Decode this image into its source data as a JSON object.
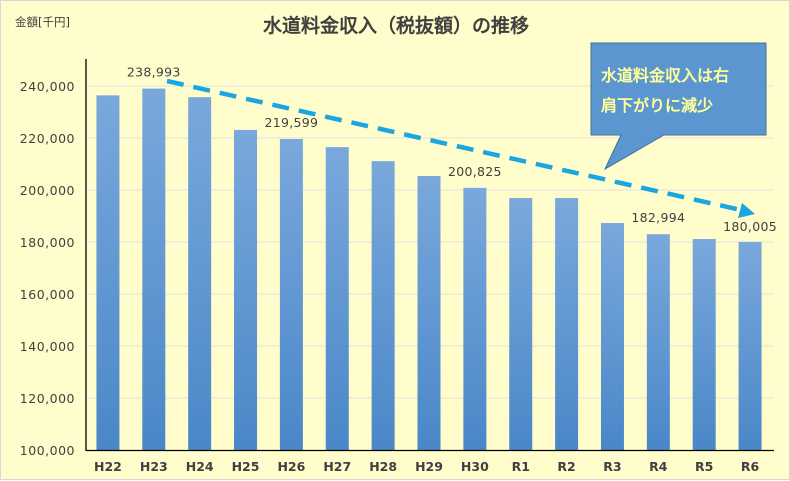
{
  "chart_data": {
    "type": "bar",
    "title": "水道料金収入（税抜額）の推移",
    "ylabel": "金額[千円]",
    "xlabel": "",
    "categories": [
      "H22",
      "H23",
      "H24",
      "H25",
      "H26",
      "H27",
      "H28",
      "H29",
      "H30",
      "R1",
      "R2",
      "R3",
      "R4",
      "R5",
      "R6"
    ],
    "values": [
      236400,
      238993,
      235700,
      223100,
      219599,
      216500,
      211100,
      205400,
      200825,
      196900,
      196900,
      187300,
      182994,
      181150,
      180005
    ],
    "data_labels": {
      "H23": "238,993",
      "H26": "219,599",
      "H30": "200,825",
      "R4": "182,994",
      "R6": "180,005"
    },
    "ylim": [
      100000,
      250000
    ],
    "yticks": [
      100000,
      120000,
      140000,
      160000,
      180000,
      200000,
      220000,
      240000
    ],
    "ytick_labels": [
      "100,000",
      "120,000",
      "140,000",
      "160,000",
      "180,000",
      "200,000",
      "220,000",
      "240,000"
    ],
    "grid": true,
    "legend": null,
    "annotations": [
      {
        "type": "callout",
        "text_line1": "水道料金収入は右",
        "text_line2": "肩下がりに減少"
      },
      {
        "type": "dashed-trend-arrow",
        "from": "H23",
        "to": "R6"
      }
    ]
  },
  "colors": {
    "background": "#fffdcc",
    "bar_top": "#7aa8dc",
    "bar_bottom": "#4a87c8",
    "trend_arrow": "#1aa6e0",
    "callout_fill": "#5b96d0",
    "callout_border": "#41719c",
    "callout_text": "#ffff99",
    "text": "#404040",
    "grid": "#e0e0e0"
  }
}
